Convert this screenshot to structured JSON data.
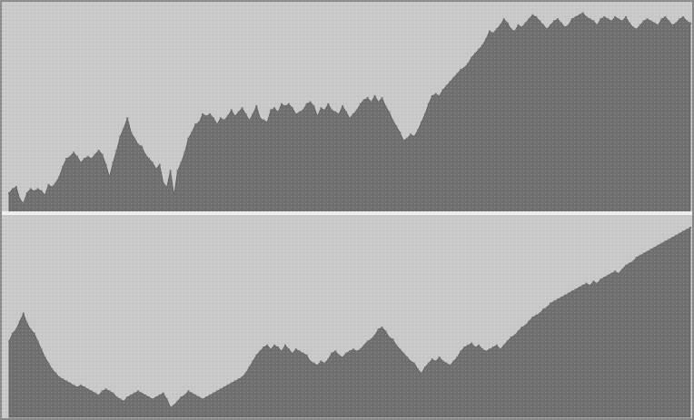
{
  "colors": {
    "background": "#c9c9c9",
    "area_fill": "#707070",
    "border": "#8a8a8a",
    "separator": "#f0f0f0"
  },
  "chart_data": [
    {
      "type": "area",
      "title": "",
      "xlabel": "",
      "ylabel": "",
      "grid": false,
      "ylim": [
        0,
        100
      ],
      "x": [
        0,
        1,
        2,
        3,
        4,
        5,
        6,
        7,
        8,
        9,
        10,
        11,
        12,
        13,
        14,
        15,
        16,
        17,
        18,
        19,
        20,
        21,
        22,
        23,
        24,
        25,
        26,
        27,
        28,
        29,
        30,
        31,
        32,
        33,
        34,
        35,
        36,
        37,
        38,
        39,
        40,
        41,
        42,
        43,
        44,
        45,
        46,
        47,
        48,
        49,
        50,
        51,
        52,
        53,
        54,
        55,
        56,
        57,
        58,
        59,
        60,
        61,
        62,
        63,
        64,
        65,
        66,
        67,
        68,
        69,
        70,
        71,
        72,
        73,
        74,
        75,
        76,
        77,
        78,
        79,
        80,
        81,
        82,
        83,
        84,
        85,
        86,
        87,
        88,
        89,
        90,
        91,
        92,
        93,
        94,
        95,
        96,
        97,
        98,
        99,
        100,
        101,
        102,
        103,
        104,
        105,
        106,
        107,
        108,
        109,
        110,
        111,
        112,
        113,
        114,
        115,
        116,
        117,
        118,
        119,
        120,
        121,
        122,
        123,
        124,
        125,
        126,
        127,
        128,
        129,
        130,
        131,
        132,
        133,
        134,
        135,
        136,
        137,
        138,
        139,
        140,
        141,
        142,
        143,
        144,
        145,
        146,
        147,
        148,
        149,
        150,
        151,
        152,
        153,
        154,
        155,
        156,
        157,
        158,
        159,
        160,
        161,
        162,
        163,
        164,
        165,
        166,
        167,
        168,
        169,
        170,
        171,
        172,
        173,
        174,
        175,
        176,
        177,
        178,
        179,
        180,
        181,
        182,
        183,
        184,
        185,
        186,
        187,
        188,
        189,
        190
      ],
      "values": [
        9,
        11,
        12,
        6,
        4,
        9,
        11,
        10,
        11,
        10,
        8,
        13,
        12,
        14,
        17,
        22,
        26,
        27,
        29,
        27,
        24,
        26,
        27,
        26,
        28,
        30,
        28,
        23,
        17,
        24,
        30,
        37,
        41,
        46,
        39,
        36,
        33,
        32,
        28,
        26,
        24,
        21,
        23,
        14,
        12,
        20,
        8,
        20,
        24,
        29,
        36,
        39,
        43,
        44,
        48,
        47,
        48,
        46,
        43,
        46,
        45,
        47,
        50,
        47,
        49,
        51,
        48,
        45,
        48,
        52,
        46,
        45,
        44,
        50,
        51,
        49,
        53,
        52,
        53,
        51,
        48,
        49,
        50,
        53,
        54,
        52,
        47,
        51,
        50,
        53,
        50,
        49,
        48,
        52,
        49,
        46,
        48,
        50,
        53,
        55,
        56,
        54,
        57,
        54,
        56,
        52,
        49,
        45,
        42,
        39,
        35,
        36,
        38,
        37,
        40,
        44,
        48,
        53,
        57,
        58,
        57,
        60,
        62,
        64,
        66,
        68,
        70,
        71,
        73,
        76,
        78,
        80,
        82,
        85,
        89,
        88,
        90,
        92,
        95,
        93,
        90,
        89,
        92,
        91,
        93,
        95,
        97,
        96,
        94,
        92,
        90,
        92,
        94,
        95,
        93,
        91,
        92,
        95,
        96,
        97,
        98,
        96,
        95,
        94,
        92,
        95,
        96,
        95,
        94,
        96,
        95,
        94,
        96,
        93,
        91,
        90,
        92,
        94,
        95,
        94,
        93,
        92,
        95,
        96,
        94,
        92,
        93,
        95,
        96,
        94,
        93
      ]
    },
    {
      "type": "area",
      "title": "",
      "xlabel": "",
      "ylabel": "",
      "grid": false,
      "ylim": [
        0,
        100
      ],
      "x": [
        0,
        1,
        2,
        3,
        4,
        5,
        6,
        7,
        8,
        9,
        10,
        11,
        12,
        13,
        14,
        15,
        16,
        17,
        18,
        19,
        20,
        21,
        22,
        23,
        24,
        25,
        26,
        27,
        28,
        29,
        30,
        31,
        32,
        33,
        34,
        35,
        36,
        37,
        38,
        39,
        40,
        41,
        42,
        43,
        44,
        45,
        46,
        47,
        48,
        49,
        50,
        51,
        52,
        53,
        54,
        55,
        56,
        57,
        58,
        59,
        60,
        61,
        62,
        63,
        64,
        65,
        66,
        67,
        68,
        69,
        70,
        71,
        72,
        73,
        74,
        75,
        76,
        77,
        78,
        79,
        80,
        81,
        82,
        83,
        84,
        85,
        86,
        87,
        88,
        89,
        90,
        91,
        92,
        93,
        94,
        95,
        96,
        97,
        98,
        99,
        100,
        101,
        102,
        103,
        104,
        105,
        106,
        107,
        108,
        109,
        110,
        111,
        112,
        113,
        114,
        115,
        116,
        117,
        118,
        119,
        120,
        121,
        122,
        123,
        124,
        125,
        126,
        127,
        128,
        129,
        130,
        131,
        132,
        133,
        134,
        135,
        136,
        137,
        138,
        139,
        140,
        141,
        142,
        143,
        144,
        145,
        146,
        147,
        148,
        149,
        150,
        151,
        152,
        153,
        154,
        155,
        156,
        157,
        158,
        159,
        160,
        161,
        162,
        163,
        164,
        165,
        166,
        167,
        168,
        169,
        170,
        171,
        172,
        173,
        174,
        175,
        176,
        177,
        178,
        179,
        180,
        181,
        182,
        183,
        184,
        185,
        186,
        187,
        188,
        189,
        190
      ],
      "values": [
        38,
        42,
        44,
        48,
        52,
        47,
        44,
        42,
        38,
        34,
        30,
        27,
        24,
        22,
        20,
        19,
        18,
        17,
        16,
        15,
        16,
        15,
        14,
        13,
        12,
        11,
        13,
        14,
        13,
        12,
        10,
        9,
        8,
        10,
        11,
        12,
        13,
        12,
        11,
        10,
        9,
        10,
        11,
        12,
        9,
        5,
        6,
        8,
        10,
        11,
        13,
        12,
        11,
        10,
        9,
        10,
        11,
        12,
        13,
        14,
        15,
        16,
        17,
        18,
        19,
        20,
        22,
        25,
        28,
        31,
        33,
        35,
        36,
        34,
        36,
        35,
        33,
        36,
        34,
        32,
        34,
        33,
        32,
        31,
        28,
        27,
        26,
        28,
        27,
        29,
        32,
        33,
        31,
        30,
        32,
        33,
        34,
        33,
        34,
        36,
        38,
        39,
        41,
        44,
        45,
        43,
        40,
        39,
        36,
        34,
        32,
        30,
        28,
        27,
        24,
        22,
        25,
        27,
        29,
        28,
        30,
        28,
        27,
        26,
        28,
        30,
        33,
        35,
        36,
        37,
        35,
        36,
        34,
        33,
        34,
        35,
        36,
        34,
        36,
        38,
        40,
        41,
        43,
        45,
        46,
        48,
        50,
        51,
        52,
        54,
        55,
        57,
        58,
        59,
        60,
        61,
        62,
        63,
        64,
        65,
        66,
        67,
        66,
        68,
        67,
        69,
        70,
        71,
        72,
        73,
        72,
        74,
        76,
        77,
        78,
        80,
        81,
        82,
        83,
        84,
        85,
        86,
        87,
        88,
        89,
        90,
        91,
        92,
        93,
        94,
        95
      ]
    }
  ]
}
